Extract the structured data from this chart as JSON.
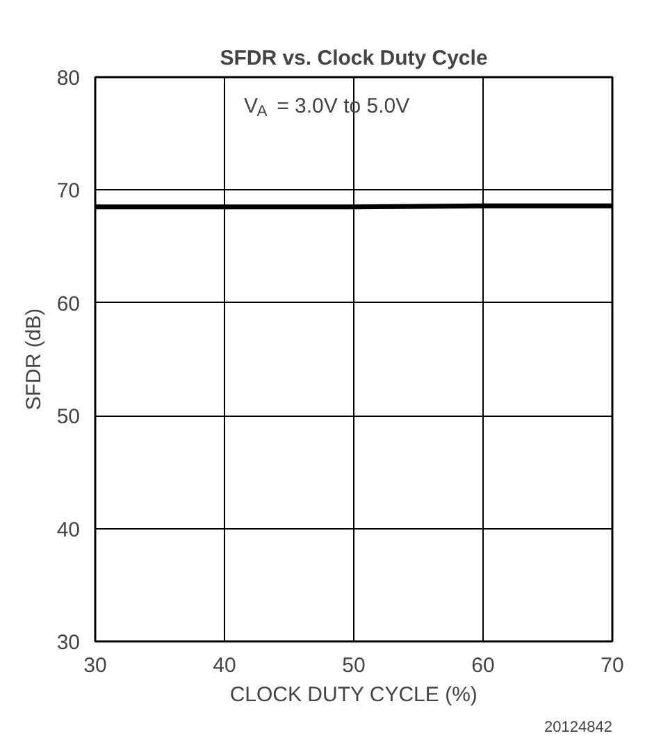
{
  "chart_data": {
    "type": "line",
    "title": "SFDR vs. Clock Duty Cycle",
    "xlabel": "CLOCK DUTY CYCLE (%)",
    "ylabel": "SFDR (dB)",
    "x": [
      30,
      40,
      50,
      60,
      70
    ],
    "series": [
      {
        "color": "#000000",
        "values": [
          68.5,
          68.5,
          68.5,
          68.6,
          68.6
        ]
      }
    ],
    "xlim": [
      30,
      70
    ],
    "xticks": [
      30,
      40,
      50,
      60,
      70
    ],
    "ylim": [
      30,
      80
    ],
    "yticks": [
      30,
      40,
      50,
      60,
      70,
      80
    ],
    "grid": true,
    "marker": "none",
    "line_style": "solid",
    "annotations": [
      "V$_{A}$ = 3.0V to 5.0V",
      "20124842"
    ]
  }
}
